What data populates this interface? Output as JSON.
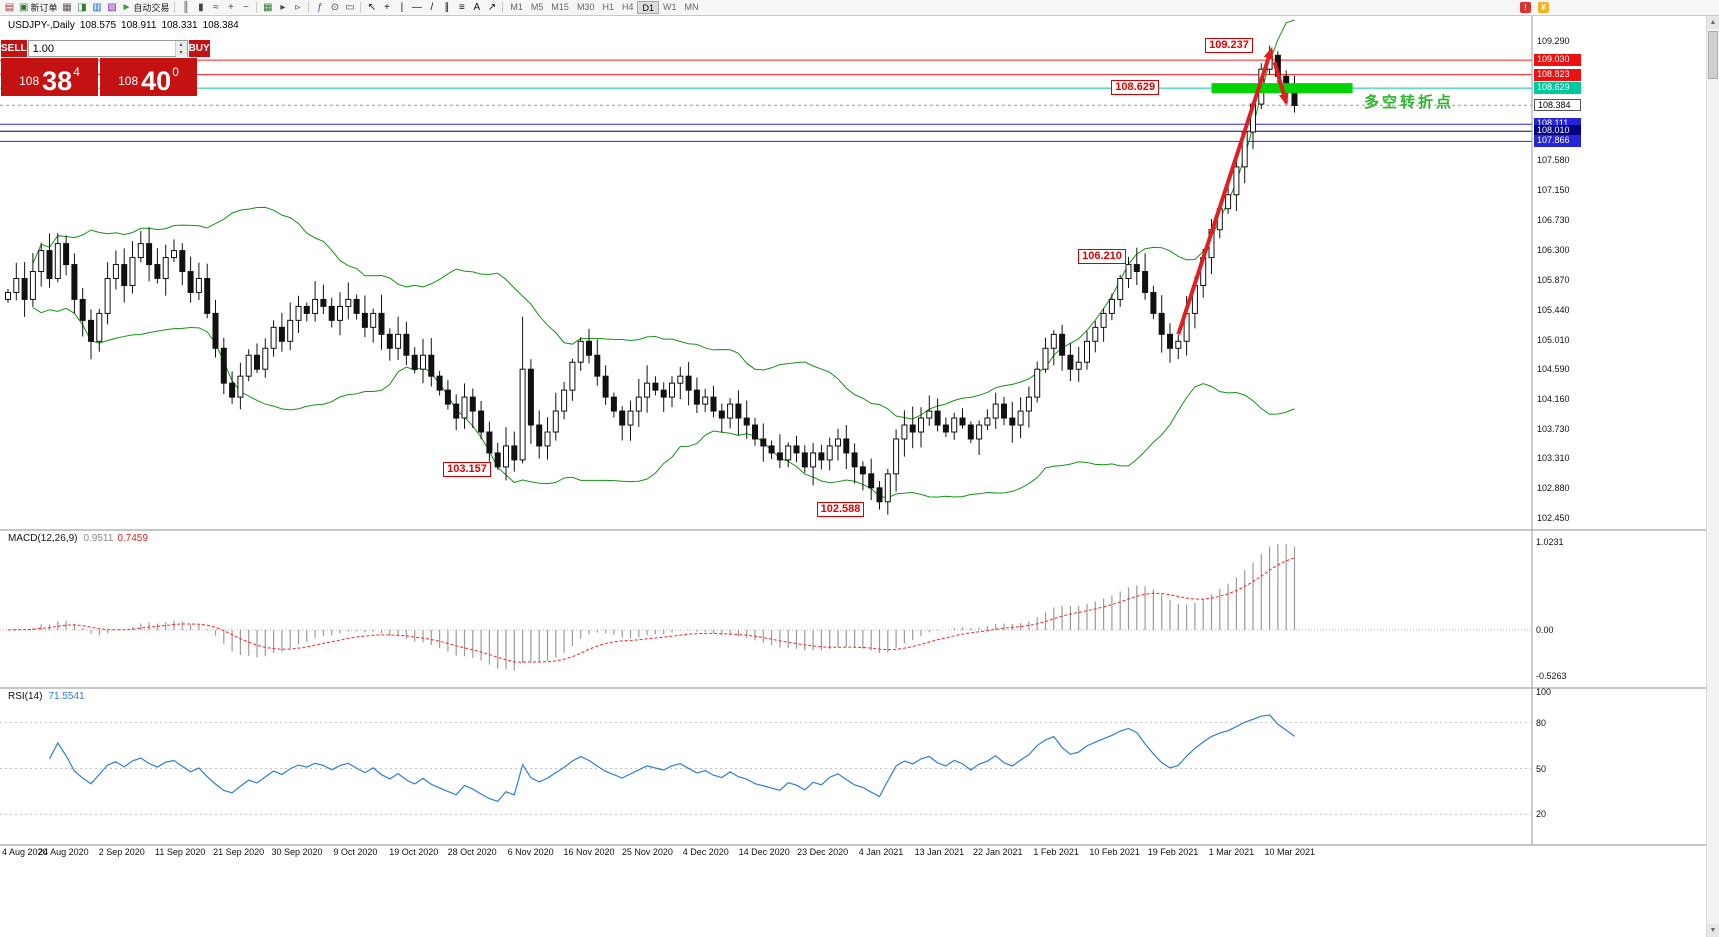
{
  "toolbar": {
    "buttons": [
      {
        "name": "symbol-chart-icon",
        "glyph": "▤",
        "color": "#b03030"
      },
      {
        "name": "new-order-button",
        "glyph": "▣",
        "color": "#2e7d32",
        "label": "新订单"
      },
      {
        "name": "chart-windows-icon",
        "glyph": "▦",
        "color": "#555555"
      },
      {
        "name": "profiles-icon",
        "glyph": "◨",
        "color": "#2e7d32"
      },
      {
        "name": "market-watch-icon",
        "glyph": "▥",
        "color": "#1565c0"
      },
      {
        "name": "navigator-icon",
        "glyph": "▧",
        "color": "#7b1fa2"
      },
      {
        "name": "auto-trading-button",
        "glyph": "►",
        "color": "#2e9e3a",
        "label": "自动交易"
      },
      {
        "sep": true
      },
      {
        "name": "bar-chart-icon",
        "glyph": "║",
        "color": "#444444"
      },
      {
        "name": "candlestick-chart-icon",
        "glyph": "▮",
        "color": "#444444"
      },
      {
        "name": "line-chart-icon",
        "glyph": "≈",
        "color": "#444444"
      },
      {
        "name": "zoom-in-icon",
        "glyph": "+",
        "color": "#444444"
      },
      {
        "name": "zoom-out-icon",
        "glyph": "−",
        "color": "#444444"
      },
      {
        "sep": true
      },
      {
        "name": "tile-windows-icon",
        "glyph": "▦",
        "color": "#2e7d32"
      },
      {
        "name": "auto-scroll-icon",
        "glyph": "▸",
        "color": "#444444"
      },
      {
        "name": "chart-shift-icon",
        "glyph": "▹",
        "color": "#444444"
      },
      {
        "sep": true
      },
      {
        "name": "indicators-icon",
        "glyph": "ƒ",
        "color": "#1565c0"
      },
      {
        "name": "periods-icon",
        "glyph": "⊙",
        "color": "#444444"
      },
      {
        "name": "templates-icon",
        "glyph": "▭",
        "color": "#444444"
      },
      {
        "sep": true
      },
      {
        "name": "cursor-icon",
        "glyph": "↖",
        "color": "#111111"
      },
      {
        "name": "crosshair-icon",
        "glyph": "+",
        "color": "#111111"
      },
      {
        "name": "vertical-line-icon",
        "glyph": "|",
        "color": "#111111"
      },
      {
        "name": "horizontal-line-icon",
        "glyph": "—",
        "color": "#111111"
      },
      {
        "name": "trendline-icon",
        "glyph": "/",
        "color": "#111111"
      },
      {
        "name": "equidistant-channel-icon",
        "glyph": "∥",
        "color": "#111111"
      },
      {
        "name": "fibonacci-icon",
        "glyph": "≡",
        "color": "#111111"
      },
      {
        "name": "text-icon",
        "glyph": "A",
        "color": "#111111"
      },
      {
        "name": "arrows-icon",
        "glyph": "↗",
        "color": "#111111"
      },
      {
        "sep": true
      }
    ],
    "timeframes": [
      "M1",
      "M5",
      "M15",
      "M30",
      "H1",
      "H4",
      "D1",
      "W1",
      "MN"
    ],
    "active_timeframe": "D1",
    "right_icons": [
      {
        "name": "alert-icon",
        "glyph": "!",
        "bg": "#e03131"
      },
      {
        "name": "news-icon",
        "glyph": "¥",
        "bg": "#f2b41f"
      }
    ]
  },
  "quick_trade": {
    "sell_label": "SELL",
    "buy_label": "BUY",
    "volume": "1.00",
    "step_up": "▴",
    "step_down": "▾",
    "sell_price": {
      "big": "108",
      "pips": "38",
      "point": "4"
    },
    "buy_price": {
      "big": "108",
      "pips": "40",
      "point": "0"
    }
  },
  "chart_header": {
    "symbol": "USDJPY-,Daily",
    "open": "108.575",
    "high": "108.911",
    "low": "108.331",
    "close": "108.384"
  },
  "price_axis": {
    "ticks": [
      "109.290",
      "107.580",
      "107.150",
      "106.730",
      "106.300",
      "105.870",
      "105.440",
      "105.010",
      "104.590",
      "104.160",
      "103.730",
      "103.310",
      "102.880",
      "102.450"
    ],
    "tags": [
      {
        "value": "109.030",
        "bg": "#ee1111",
        "fg": "#ffffff",
        "line_color": "#ff1e1e",
        "style": "solid"
      },
      {
        "value": "108.823",
        "bg": "#ee1111",
        "fg": "#ffffff",
        "line_color": "#ff1e1e",
        "style": "solid"
      },
      {
        "value": "108.629",
        "bg": "#00c9a0",
        "fg": "#ffffff",
        "line_color": "#00c9a0",
        "style": "solid"
      },
      {
        "value": "108.384",
        "bg": "#ffffff",
        "fg": "#000000",
        "line_color": "#9a9a9a",
        "style": "dashed",
        "current": true
      },
      {
        "value": "108.111",
        "bg": "#2626d8",
        "fg": "#ffffff",
        "line_color": "#2626d8",
        "style": "solid"
      },
      {
        "value": "108.010",
        "bg": "#000080",
        "fg": "#ffffff",
        "line_color": "#000080",
        "style": "solid"
      },
      {
        "value": "107.866",
        "bg": "#2626d8",
        "fg": "#ffffff",
        "line_color": "#2626d8",
        "style": "solid"
      }
    ]
  },
  "annotations": {
    "callouts": [
      {
        "text": "109.237",
        "price": 109.237,
        "anchor_index": 152.3
      },
      {
        "text": "108.629",
        "price": 108.629,
        "anchor_index": 141.0
      },
      {
        "text": "106.210",
        "price": 106.21,
        "anchor_index": 137.0
      },
      {
        "text": "103.157",
        "price": 103.157,
        "anchor_index": 60.5
      },
      {
        "text": "102.588",
        "price": 102.588,
        "anchor_index": 105.5
      }
    ],
    "highlight_bar": {
      "price": 108.629,
      "from_index": 145,
      "to_index": 162,
      "color": "#00d400"
    },
    "note": {
      "text": "多空转折点",
      "color": "#2db52d"
    },
    "arrow_color": "#e02020",
    "arrows": [
      {
        "from_index": 141.0,
        "from_price": 105.1,
        "to_index": 152.2,
        "to_price": 109.18
      },
      {
        "from_index": 152.6,
        "from_price": 109.0,
        "to_index": 154.0,
        "to_price": 108.42
      }
    ]
  },
  "chart_data": {
    "type": "candlestick",
    "symbol": "USDJPY",
    "period": "Daily",
    "title": "USDJPY-,Daily 108.575 108.911 108.331 108.384",
    "y_axis": {
      "min": 102.45,
      "max": 109.29
    },
    "dates": [
      "4 Aug 2020",
      "24 Aug 2020",
      "2 Sep 2020",
      "11 Sep 2020",
      "21 Sep 2020",
      "30 Sep 2020",
      "9 Oct 2020",
      "19 Oct 2020",
      "28 Oct 2020",
      "6 Nov 2020",
      "16 Nov 2020",
      "25 Nov 2020",
      "4 Dec 2020",
      "14 Dec 2020",
      "23 Dec 2020",
      "4 Jan 2021",
      "13 Jan 2021",
      "22 Jan 2021",
      "1 Feb 2021",
      "10 Feb 2021",
      "19 Feb 2021",
      "1 Mar 2021",
      "10 Mar 2021"
    ],
    "closes": [
      105.7,
      105.9,
      105.6,
      106.0,
      106.3,
      105.9,
      106.4,
      106.1,
      105.6,
      105.3,
      105.0,
      105.4,
      105.9,
      106.1,
      105.8,
      106.2,
      106.4,
      106.1,
      105.9,
      106.2,
      106.3,
      106.0,
      105.7,
      105.9,
      105.4,
      104.9,
      104.4,
      104.2,
      104.5,
      104.8,
      104.6,
      104.9,
      105.2,
      105.0,
      105.3,
      105.5,
      105.4,
      105.6,
      105.5,
      105.3,
      105.5,
      105.6,
      105.4,
      105.2,
      105.4,
      105.1,
      104.9,
      105.1,
      104.8,
      104.6,
      104.8,
      104.5,
      104.3,
      104.1,
      103.9,
      104.2,
      104.0,
      103.7,
      103.4,
      103.2,
      103.5,
      103.3,
      104.6,
      103.8,
      103.5,
      103.7,
      104.0,
      104.3,
      104.7,
      105.0,
      104.8,
      104.5,
      104.2,
      104.0,
      103.8,
      104.0,
      104.2,
      104.4,
      104.3,
      104.2,
      104.4,
      104.5,
      104.3,
      104.1,
      104.2,
      104.0,
      103.9,
      104.1,
      103.9,
      103.8,
      103.6,
      103.5,
      103.4,
      103.3,
      103.5,
      103.4,
      103.2,
      103.4,
      103.3,
      103.5,
      103.6,
      103.4,
      103.2,
      103.1,
      102.9,
      102.7,
      103.1,
      103.6,
      103.8,
      103.7,
      103.9,
      104.0,
      103.8,
      103.7,
      103.9,
      103.8,
      103.6,
      103.8,
      103.9,
      104.1,
      103.9,
      103.8,
      104.0,
      104.2,
      104.6,
      104.9,
      105.1,
      104.8,
      104.6,
      104.7,
      105.0,
      105.2,
      105.4,
      105.6,
      105.9,
      106.1,
      106.0,
      105.7,
      105.4,
      105.1,
      104.9,
      105.0,
      105.4,
      105.8,
      106.2,
      106.6,
      106.9,
      107.1,
      107.5,
      108.0,
      108.4,
      108.9,
      109.1,
      108.8,
      108.6,
      108.38
    ],
    "wick_overrides": {
      "59": {
        "low": 103.157
      },
      "62": {
        "high": 105.35,
        "low": 103.25
      },
      "105": {
        "low": 102.588
      },
      "135": {
        "high": 106.21
      },
      "152": {
        "high": 109.237
      }
    },
    "key_levels": {
      "peak": 109.237,
      "resistance": [
        109.03,
        108.823
      ],
      "pivot_zone": 108.629,
      "current_bid": 108.384,
      "support": [
        108.111,
        108.01,
        107.866
      ],
      "swing_high_feb": 106.21,
      "oct_low": 103.157,
      "jan_low": 102.588
    },
    "indicators": {
      "bollinger": {
        "period": 20,
        "deviation": 2,
        "color": "#149414"
      },
      "macd": {
        "params": [
          12,
          26,
          9
        ],
        "main": 0.9511,
        "signal": 0.7459,
        "scale_max": 1.0231,
        "scale_min": -0.5263
      },
      "rsi": {
        "period": 14,
        "value": 71.5541,
        "levels": [
          80,
          50,
          20
        ]
      }
    }
  },
  "macd_panel": {
    "name": "MACD(12,26,9)",
    "main_value": "0.9511",
    "signal_value": "0.7459",
    "scale_max": "1.0231",
    "scale_zero": "0.00",
    "scale_min": "-0.5263"
  },
  "rsi_panel": {
    "name": "RSI(14)",
    "value": "71.5541",
    "scale": [
      "100",
      "80",
      "50",
      "20"
    ]
  },
  "scrollbar": {
    "up": "▲",
    "down": "▼"
  }
}
